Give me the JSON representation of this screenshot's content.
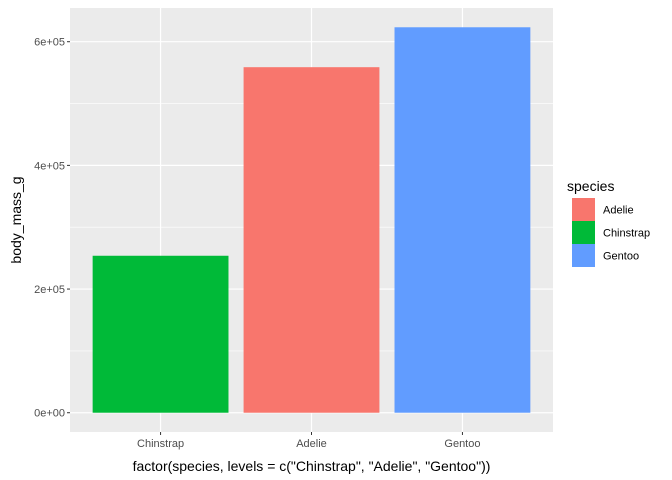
{
  "chart_data": {
    "type": "bar",
    "categories": [
      "Chinstrap",
      "Adelie",
      "Gentoo"
    ],
    "values": [
      253850,
      558800,
      623350
    ],
    "colors": [
      "#00BA38",
      "#F8766D",
      "#619CFF"
    ],
    "xlabel": "factor(species, levels = c(\"Chinstrap\", \"Adelie\", \"Gentoo\"))",
    "ylabel": "body_mass_g",
    "ylim": [
      -31167.5,
      654517.5
    ],
    "yticks": [
      0,
      200000,
      400000,
      600000
    ],
    "ytick_labels": [
      "0e+00",
      "2e+05",
      "4e+05",
      "6e+05"
    ],
    "grid": true,
    "panel_background": "#EBEBEB",
    "legend": {
      "title": "species",
      "position": "right",
      "entries": [
        {
          "label": "Adelie",
          "color": "#F8766D"
        },
        {
          "label": "Chinstrap",
          "color": "#00BA38"
        },
        {
          "label": "Gentoo",
          "color": "#619CFF"
        }
      ]
    }
  }
}
